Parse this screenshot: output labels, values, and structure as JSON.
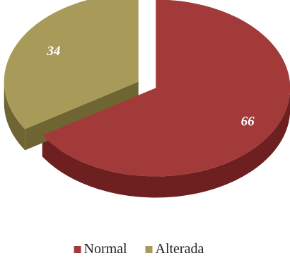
{
  "chart_data": {
    "type": "pie",
    "style": "3d-exploded",
    "legend_position": "bottom",
    "slices": [
      {
        "name": "Normal",
        "value": 66,
        "label": "66",
        "color": "#a33a3a",
        "side_color": "#6e1f1f"
      },
      {
        "name": "Alterada",
        "value": 34,
        "label": "34",
        "color": "#a89a58",
        "side_color": "#6f6532"
      }
    ]
  }
}
